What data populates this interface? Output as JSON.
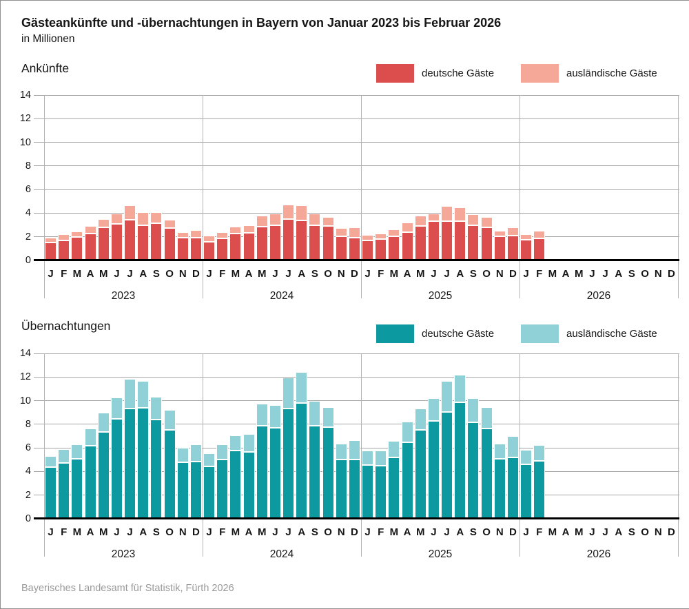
{
  "page": {
    "title": "Gästeankünfte und -übernachtungen in Bayern von Januar 2023 bis Februar 2026",
    "subtitle": "in Millionen",
    "footer": "Bayerisches Landesamt für Statistik, Fürth 2026"
  },
  "chart_data": [
    {
      "type": "bar",
      "stacked": true,
      "section_label": "Ankünfte",
      "unit": "Millionen",
      "ylim": [
        0,
        14
      ],
      "yticks": [
        0,
        2,
        4,
        6,
        8,
        10,
        12,
        14
      ],
      "grid": true,
      "legend_position": "top-right",
      "month_labels": [
        "J",
        "F",
        "M",
        "A",
        "M",
        "J",
        "J",
        "A",
        "S",
        "O",
        "N",
        "D"
      ],
      "series": [
        {
          "name": "deutsche Gäste",
          "color": "#dc4e4e"
        },
        {
          "name": "ausländische Gäste",
          "color": "#f5a798"
        }
      ],
      "years": [
        {
          "year": "2023",
          "domestic": [
            1.5,
            1.7,
            2.0,
            2.3,
            2.8,
            3.1,
            3.45,
            3.0,
            3.15,
            2.75,
            1.9,
            1.9
          ],
          "foreign": [
            0.4,
            0.5,
            0.45,
            0.6,
            0.7,
            0.85,
            1.2,
            1.1,
            0.95,
            0.7,
            0.5,
            0.65
          ]
        },
        {
          "year": "2024",
          "domestic": [
            1.6,
            1.85,
            2.25,
            2.35,
            2.85,
            2.95,
            3.5,
            3.4,
            3.0,
            2.9,
            2.05,
            1.95
          ],
          "foreign": [
            0.5,
            0.55,
            0.6,
            0.65,
            0.95,
            1.0,
            1.25,
            1.25,
            0.95,
            0.8,
            0.7,
            0.85
          ]
        },
        {
          "year": "2025",
          "domestic": [
            1.7,
            1.8,
            2.05,
            2.4,
            2.9,
            3.3,
            3.35,
            3.35,
            2.95,
            2.8,
            2.05,
            2.1
          ],
          "foreign": [
            0.45,
            0.5,
            0.6,
            0.8,
            0.9,
            0.65,
            1.25,
            1.15,
            0.95,
            0.9,
            0.45,
            0.7
          ]
        },
        {
          "year": "2026",
          "domestic": [
            1.75,
            1.85
          ],
          "foreign": [
            0.45,
            0.65
          ]
        }
      ]
    },
    {
      "type": "bar",
      "stacked": true,
      "section_label": "Übernachtungen",
      "unit": "Millionen",
      "ylim": [
        0,
        14
      ],
      "yticks": [
        0,
        2,
        4,
        6,
        8,
        10,
        12,
        14
      ],
      "grid": true,
      "legend_position": "top-right",
      "month_labels": [
        "J",
        "F",
        "M",
        "A",
        "M",
        "J",
        "J",
        "A",
        "S",
        "O",
        "N",
        "D"
      ],
      "series": [
        {
          "name": "deutsche Gäste",
          "color": "#0c9aa0"
        },
        {
          "name": "ausländische Gäste",
          "color": "#90d1d8"
        }
      ],
      "years": [
        {
          "year": "2023",
          "domestic": [
            4.35,
            4.75,
            5.1,
            6.2,
            7.35,
            8.45,
            9.35,
            9.4,
            8.4,
            7.5,
            4.8,
            4.85
          ],
          "foreign": [
            0.95,
            1.15,
            1.2,
            1.45,
            1.65,
            1.8,
            2.5,
            2.25,
            1.95,
            1.7,
            1.2,
            1.45
          ]
        },
        {
          "year": "2024",
          "domestic": [
            4.45,
            5.0,
            5.75,
            5.65,
            7.9,
            7.7,
            9.35,
            9.8,
            7.9,
            7.75,
            5.0,
            5.0
          ],
          "foreign": [
            1.1,
            1.3,
            1.3,
            1.5,
            1.85,
            1.95,
            2.6,
            2.65,
            2.05,
            1.7,
            1.35,
            1.65
          ]
        },
        {
          "year": "2025",
          "domestic": [
            4.55,
            4.5,
            5.2,
            6.45,
            7.5,
            8.3,
            9.05,
            9.85,
            8.15,
            7.65,
            5.05,
            5.2
          ],
          "foreign": [
            1.2,
            1.25,
            1.4,
            1.75,
            1.85,
            1.9,
            2.6,
            2.35,
            2.05,
            1.8,
            1.3,
            1.8
          ]
        },
        {
          "year": "2026",
          "domestic": [
            4.6,
            4.9
          ],
          "foreign": [
            1.25,
            1.35
          ]
        }
      ]
    }
  ]
}
